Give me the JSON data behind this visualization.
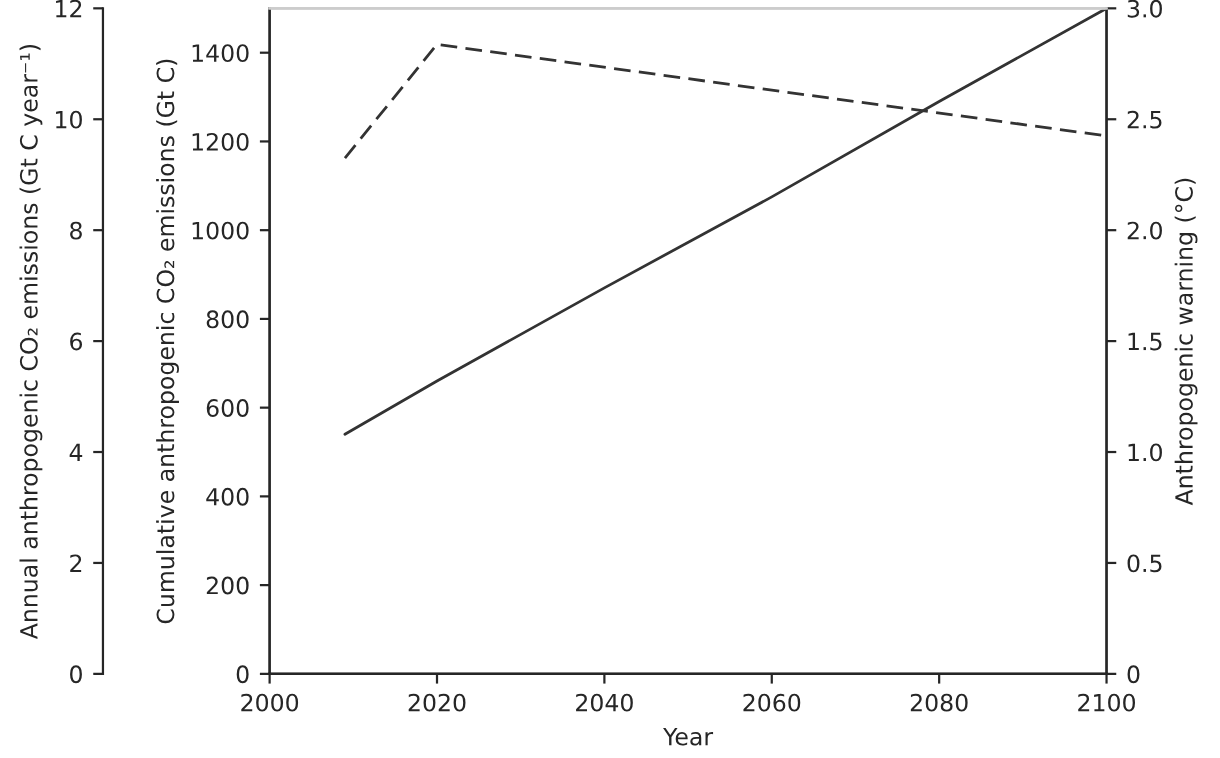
{
  "chart_data": {
    "type": "line",
    "xlabel": "Year",
    "ylabel": "Cumulative anthropogenic CO₂ emissions (Gt C)",
    "y2label": "Anthropogenic warning (°C)",
    "y3label": "Annual anthropogenic CO₂ emissions (Gt C year⁻¹)",
    "xlim": [
      2000,
      2100
    ],
    "xticks": [
      2000,
      2020,
      2040,
      2060,
      2080,
      2100
    ],
    "ylim": [
      0,
      1500
    ],
    "yticks": [
      0,
      200,
      400,
      600,
      800,
      1000,
      1200,
      1400
    ],
    "y2lim": [
      0,
      3
    ],
    "y2ticks": [
      0,
      0.5,
      {
        "value": 1,
        "label": "1.0"
      },
      1.5,
      {
        "value": 2,
        "label": "2.0"
      },
      2.5,
      {
        "value": 3,
        "label": "3.0"
      }
    ],
    "y3lim": [
      0,
      12
    ],
    "y3ticks": [
      0,
      2,
      4,
      6,
      8,
      10,
      12
    ],
    "grid": false,
    "legend": false,
    "series": [
      {
        "color": "#333333",
        "line_style": "solid",
        "axis": "y",
        "x": [
          2009,
          2020,
          2040,
          2060,
          2080,
          2100
        ],
        "values": [
          540,
          660,
          870,
          1075,
          1290,
          1500
        ]
      },
      {
        "color": "#333333",
        "line_style": "dashed",
        "axis": "y3",
        "x": [
          2009,
          2020,
          2100
        ],
        "values": [
          9.3,
          11.35,
          9.7
        ]
      }
    ]
  }
}
